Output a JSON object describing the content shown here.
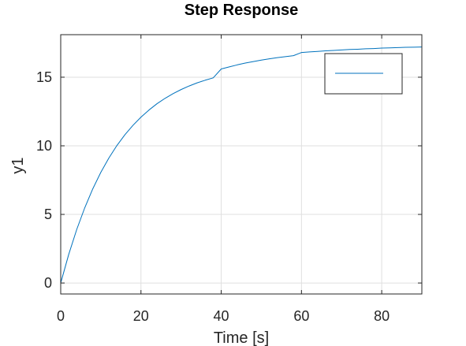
{
  "chart_data": {
    "type": "line",
    "title": "Step Response",
    "xlabel": "Time [s]",
    "ylabel": "y1",
    "xlim": [
      0,
      90
    ],
    "ylim": [
      -0.8,
      18.1
    ],
    "xticks": [
      0,
      20,
      40,
      60,
      80
    ],
    "yticks": [
      0,
      5,
      10,
      15
    ],
    "xtick_labels": [
      "0",
      "20",
      "40",
      "60",
      "80"
    ],
    "ytick_labels": [
      "0",
      "5",
      "10",
      "15"
    ],
    "grid": true,
    "legend": "top-right",
    "series": [
      {
        "color": "#0072bd",
        "x": [
          0,
          2,
          4,
          6,
          8,
          10,
          12,
          14,
          16,
          18,
          20,
          22,
          24,
          26,
          28,
          30,
          32,
          34,
          36,
          38,
          40,
          42,
          44,
          46,
          48,
          50,
          52,
          54,
          56,
          58,
          60,
          62,
          64,
          66,
          68,
          70,
          72,
          74,
          76,
          78,
          80,
          82,
          84,
          86,
          88,
          90
        ],
        "values": [
          0.0,
          2.09,
          3.91,
          5.49,
          6.87,
          8.07,
          9.11,
          10.02,
          10.81,
          11.49,
          12.09,
          12.61,
          13.07,
          13.46,
          13.8,
          14.1,
          14.36,
          14.59,
          14.78,
          14.95,
          15.6,
          15.75,
          15.9,
          16.03,
          16.14,
          16.25,
          16.34,
          16.43,
          16.5,
          16.57,
          16.8,
          16.84,
          16.88,
          16.92,
          16.95,
          16.99,
          17.02,
          17.04,
          17.07,
          17.09,
          17.12,
          17.14,
          17.16,
          17.18,
          17.19,
          17.2
        ]
      }
    ]
  }
}
